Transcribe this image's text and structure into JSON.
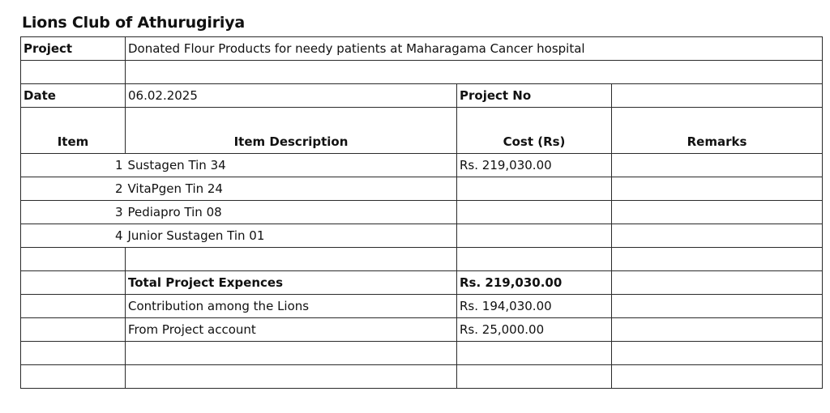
{
  "title": "Lions Club of Athurugiriya",
  "project": {
    "label": "Project",
    "value": "Donated Flour Products for needy patients at Maharagama Cancer hospital"
  },
  "date": {
    "label": "Date",
    "value": "06.02.2025",
    "project_no_label": "Project No",
    "project_no_value": ""
  },
  "headers": {
    "item": "Item",
    "description": "Item Description",
    "cost": "Cost (Rs)",
    "remarks": "Remarks"
  },
  "items": [
    {
      "no": "1",
      "description": "Sustagen Tin 34",
      "cost": "Rs.  219,030.00",
      "remarks": ""
    },
    {
      "no": "2",
      "description": "VitaPgen Tin 24",
      "cost": "",
      "remarks": ""
    },
    {
      "no": "3",
      "description": "Pediapro Tin 08",
      "cost": "",
      "remarks": ""
    },
    {
      "no": "4",
      "description": "Junior Sustagen Tin 01",
      "cost": "",
      "remarks": ""
    }
  ],
  "summary": [
    {
      "label": "Total Project Expences",
      "cost": "Rs.  219,030.00",
      "bold": true
    },
    {
      "label": "Contribution among the Lions",
      "cost": "Rs.  194,030.00",
      "bold": false
    },
    {
      "label": "From Project account",
      "cost": "Rs.    25,000.00",
      "bold": false
    }
  ]
}
